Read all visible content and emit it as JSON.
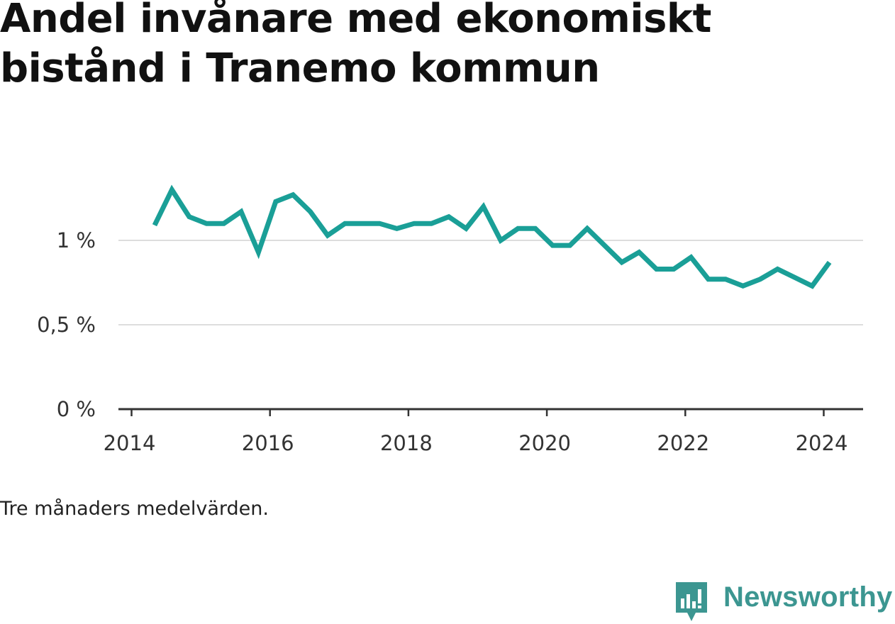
{
  "title": "Andel invånare med ekonomiskt bistånd i Tranemo kommun",
  "note": "Tre månaders medelvärden.",
  "brand": {
    "name": "Newsworthy",
    "icon": "newsworthy-logo-icon"
  },
  "colors": {
    "line": "#1a9f97",
    "grid": "#dddddd",
    "axis": "#333333",
    "brand": "#3c9691"
  },
  "chart_data": {
    "type": "line",
    "title": "Andel invånare med ekonomiskt bistånd i Tranemo kommun",
    "xlabel": "",
    "ylabel": "",
    "xlim": [
      "2014-01",
      "2024-12"
    ],
    "ylim": [
      0,
      1.45
    ],
    "x_ticks": [
      "2014",
      "2016",
      "2018",
      "2020",
      "2022",
      "2024"
    ],
    "y_ticks": [
      {
        "value": 0,
        "label": "0 %"
      },
      {
        "value": 0.5,
        "label": "0,5 %"
      },
      {
        "value": 1,
        "label": "1 %"
      }
    ],
    "grid": "horizontal",
    "legend": "none",
    "series": [
      {
        "x": [
          "2014-05",
          "2014-08",
          "2014-11",
          "2015-02",
          "2015-05",
          "2015-08",
          "2015-11",
          "2016-02",
          "2016-05",
          "2016-08",
          "2016-11",
          "2017-02",
          "2017-05",
          "2017-08",
          "2017-11",
          "2018-02",
          "2018-05",
          "2018-08",
          "2018-11",
          "2019-02",
          "2019-05",
          "2019-08",
          "2019-11",
          "2020-02",
          "2020-05",
          "2020-08",
          "2020-11",
          "2021-02",
          "2021-05",
          "2021-08",
          "2021-11",
          "2022-02",
          "2022-05",
          "2022-08",
          "2022-11",
          "2023-02",
          "2023-05",
          "2023-08",
          "2023-11",
          "2024-02"
        ],
        "values": [
          1.09,
          1.3,
          1.14,
          1.1,
          1.1,
          1.17,
          0.93,
          1.23,
          1.27,
          1.17,
          1.03,
          1.1,
          1.1,
          1.1,
          1.07,
          1.1,
          1.1,
          1.14,
          1.07,
          1.2,
          1.0,
          1.07,
          1.07,
          0.97,
          0.97,
          1.07,
          0.97,
          0.87,
          0.93,
          0.83,
          0.83,
          0.9,
          0.77,
          0.77,
          0.73,
          0.77,
          0.83,
          0.78,
          0.73,
          0.87
        ]
      }
    ]
  }
}
